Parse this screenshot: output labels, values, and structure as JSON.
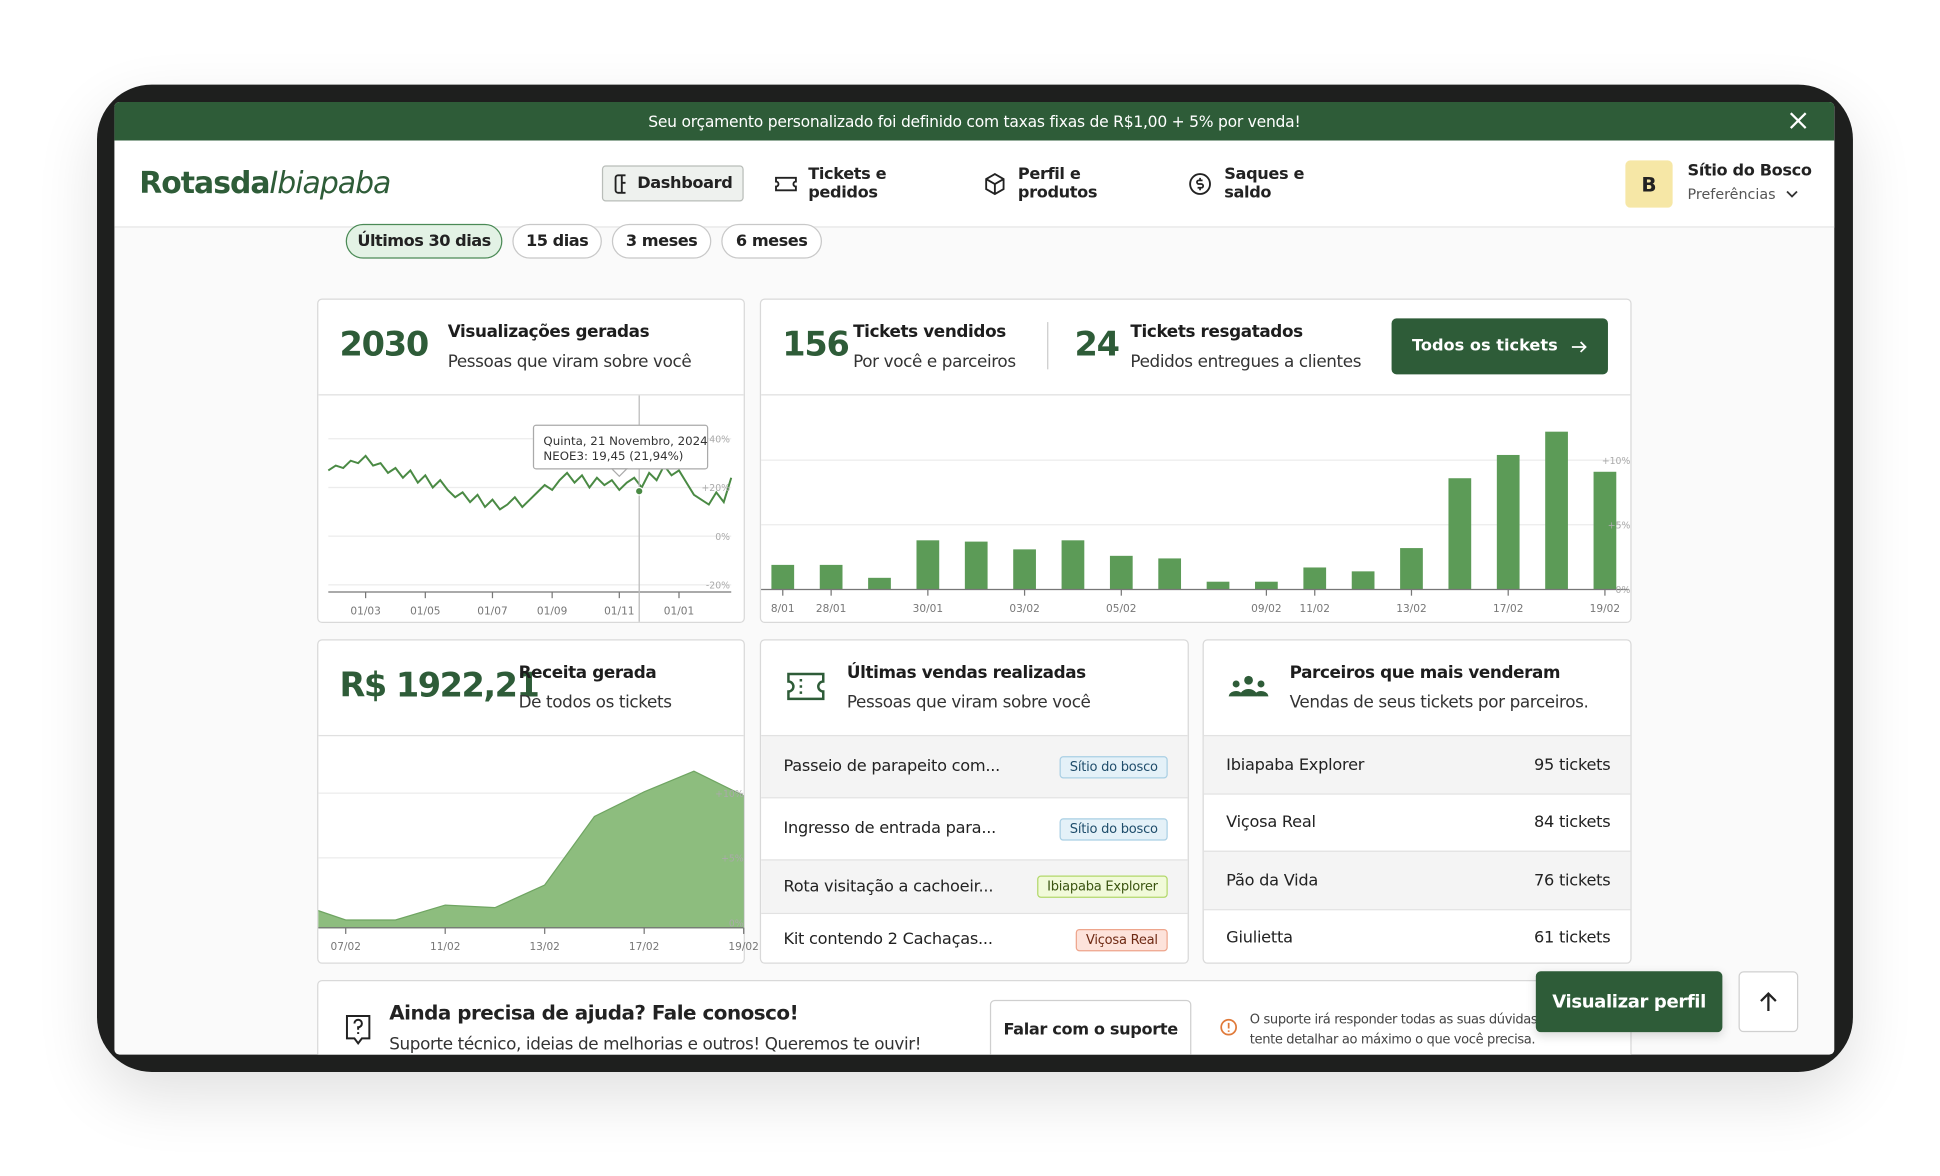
{
  "banner": {
    "text": "Seu orçamento personalizado foi definido com taxas fixas de R$1,00 + 5% por venda!"
  },
  "header": {
    "logo_bold": "Rotasda",
    "logo_italic": "Ibiapaba",
    "nav": [
      "Dashboard",
      "Tickets e pedidos",
      "Perfil e produtos",
      "Saques e saldo"
    ],
    "user": {
      "initial": "B",
      "name": "Sítio do Bosco",
      "sub": "Preferências"
    }
  },
  "filters": [
    "Últimos 30 dias",
    "15 dias",
    "3 meses",
    "6 meses"
  ],
  "views": {
    "value": "2030",
    "title": "Visualizações geradas",
    "subtitle": "Pessoas que viram sobre você",
    "tooltip": [
      "Quinta, 21 Novembro, 2024",
      "NEOE3: 19,45 (21,94%)"
    ],
    "chart": {
      "type": "line",
      "color": "#4a8a44",
      "categories": [
        null,
        null,
        null,
        null,
        null,
        "01/03",
        null,
        null,
        null,
        null,
        null,
        null,
        null,
        "01/05",
        null,
        null,
        null,
        null,
        null,
        null,
        null,
        null,
        "01/07",
        null,
        null,
        null,
        null,
        null,
        null,
        null,
        "01/09",
        null,
        null,
        null,
        null,
        null,
        null,
        null,
        null,
        "01/11",
        null,
        null,
        null,
        null,
        null,
        null,
        null,
        "01/01",
        null,
        null,
        null,
        null,
        null,
        null,
        null
      ],
      "values": [
        27,
        29,
        28,
        31,
        30,
        33,
        29,
        30,
        26,
        28,
        24,
        27,
        22,
        25,
        20,
        23,
        19,
        16,
        18,
        14,
        17,
        12,
        15,
        11,
        13,
        16,
        12,
        15,
        18,
        21,
        19,
        23,
        26,
        22,
        25,
        20,
        24,
        21,
        23,
        19,
        22,
        24,
        20,
        26,
        23,
        29,
        25,
        27,
        22,
        17,
        15,
        13,
        18,
        14,
        24
      ],
      "ylim": [
        -22.4,
        57.8
      ],
      "yticks": [
        {
          "value": 40,
          "label": "40%"
        },
        {
          "value": 20,
          "label": "+20%"
        },
        {
          "value": 0,
          "label": "0%"
        },
        {
          "value": -20,
          "label": "-20%"
        }
      ]
    }
  },
  "tickets": {
    "sold_value": "156",
    "sold_title": "Tickets vendidos",
    "sold_subtitle": "Por você e parceiros",
    "redeemed_value": "24",
    "redeemed_title": "Tickets resgatados",
    "redeemed_subtitle": "Pedidos entregues a clientes",
    "button": "Todos os tickets",
    "chart": {
      "type": "bar",
      "color": "#5c9b57",
      "categories": [
        "8/01",
        "28/01",
        null,
        "30/01",
        null,
        "03/02",
        null,
        "05/02",
        null,
        null,
        "09/02",
        "11/02",
        null,
        "13/02",
        null,
        "17/02",
        null,
        "19/02"
      ],
      "values": [
        1.9,
        1.9,
        0.9,
        3.8,
        3.7,
        3.1,
        3.8,
        2.6,
        2.4,
        0.6,
        0.6,
        1.7,
        1.4,
        3.2,
        8.6,
        10.4,
        12.2,
        9.1
      ],
      "ylim": [
        0,
        15
      ],
      "yticks": [
        {
          "value": 10,
          "label": "+10%"
        },
        {
          "value": 5,
          "label": "+5%"
        },
        {
          "value": 0,
          "label": "0%"
        }
      ]
    }
  },
  "revenue": {
    "value": "R$ 1922,21",
    "title": "Receita gerada",
    "subtitle": "De todos os tickets",
    "chart": {
      "type": "area",
      "color": "#8dbd7e",
      "categories": [
        null,
        "07/02",
        null,
        "11/02",
        null,
        "13/02",
        null,
        "17/02",
        null,
        "19/02"
      ],
      "values": [
        1.5,
        0.2,
        0.2,
        1.35,
        1.15,
        2.9,
        8.2,
        10.1,
        11.7,
        9.8
      ],
      "ylim": [
        -0.4,
        14.4
      ],
      "yticks": [
        {
          "value": 10,
          "label": "+10%"
        },
        {
          "value": 5,
          "label": "+5%"
        },
        {
          "value": 0,
          "label": "0%"
        }
      ]
    }
  },
  "sales": {
    "title": "Últimas vendas realizadas",
    "subtitle": "Pessoas que viram sobre você",
    "rows": [
      {
        "name": "Passeio de parapeito com...",
        "badge": "Sítio do bosco"
      },
      {
        "name": "Ingresso de entrada para...",
        "badge": "Sítio do bosco"
      },
      {
        "name": "Rota visitação a cachoeir...",
        "badge": "Ibiapaba Explorer"
      },
      {
        "name": "Kit contendo 2 Cachaças...",
        "badge": "Viçosa Real"
      }
    ]
  },
  "partners": {
    "title": "Parceiros que mais venderam",
    "subtitle": "Vendas de seus tickets por parceiros.",
    "rows": [
      {
        "name": "Ibiapaba Explorer",
        "count": "95 tickets"
      },
      {
        "name": "Viçosa Real",
        "count": "84 tickets"
      },
      {
        "name": "Pão da Vida",
        "count": "76 tickets"
      },
      {
        "name": "Giulietta",
        "count": "61 tickets"
      }
    ]
  },
  "help": {
    "title": "Ainda precisa de ajuda? Fale conosco!",
    "subtitle": "Suporte técnico, ideias de melhorias e outros! Queremos te ouvir!",
    "button": "Falar com o suporte",
    "note": [
      "O suporte irá responder todas as suas dúvidas em",
      "tente detalhar ao máximo o que você precisa."
    ]
  },
  "floating": {
    "profile_button": "Visualizar perfil"
  }
}
